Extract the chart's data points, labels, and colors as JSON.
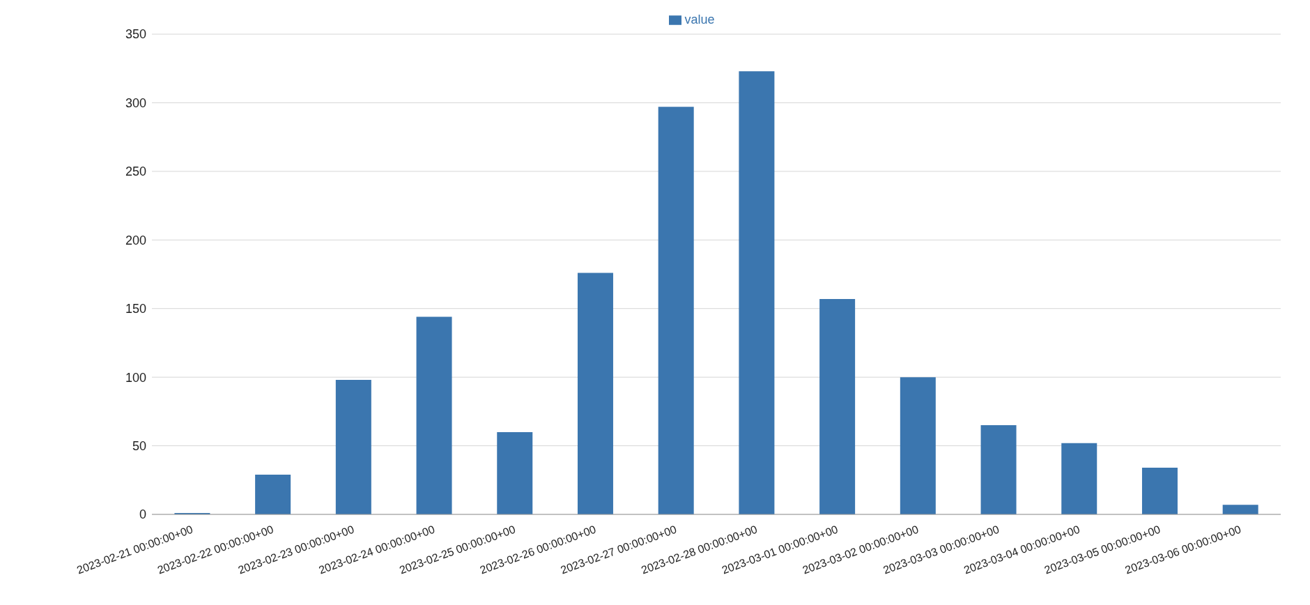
{
  "chart_data": {
    "type": "bar",
    "categories": [
      "2023-02-21 00:00:00+00",
      "2023-02-22 00:00:00+00",
      "2023-02-23 00:00:00+00",
      "2023-02-24 00:00:00+00",
      "2023-02-25 00:00:00+00",
      "2023-02-26 00:00:00+00",
      "2023-02-27 00:00:00+00",
      "2023-02-28 00:00:00+00",
      "2023-03-01 00:00:00+00",
      "2023-03-02 00:00:00+00",
      "2023-03-03 00:00:00+00",
      "2023-03-04 00:00:00+00",
      "2023-03-05 00:00:00+00",
      "2023-03-06 00:00:00+00"
    ],
    "series": [
      {
        "name": "value",
        "color": "#3b76af",
        "values": [
          1,
          29,
          98,
          144,
          60,
          176,
          297,
          323,
          157,
          100,
          65,
          52,
          34,
          7
        ]
      }
    ],
    "ylim": [
      0,
      350
    ],
    "yticks": [
      0,
      50,
      100,
      150,
      200,
      250,
      300,
      350
    ],
    "grid": "y",
    "legend": "top"
  }
}
